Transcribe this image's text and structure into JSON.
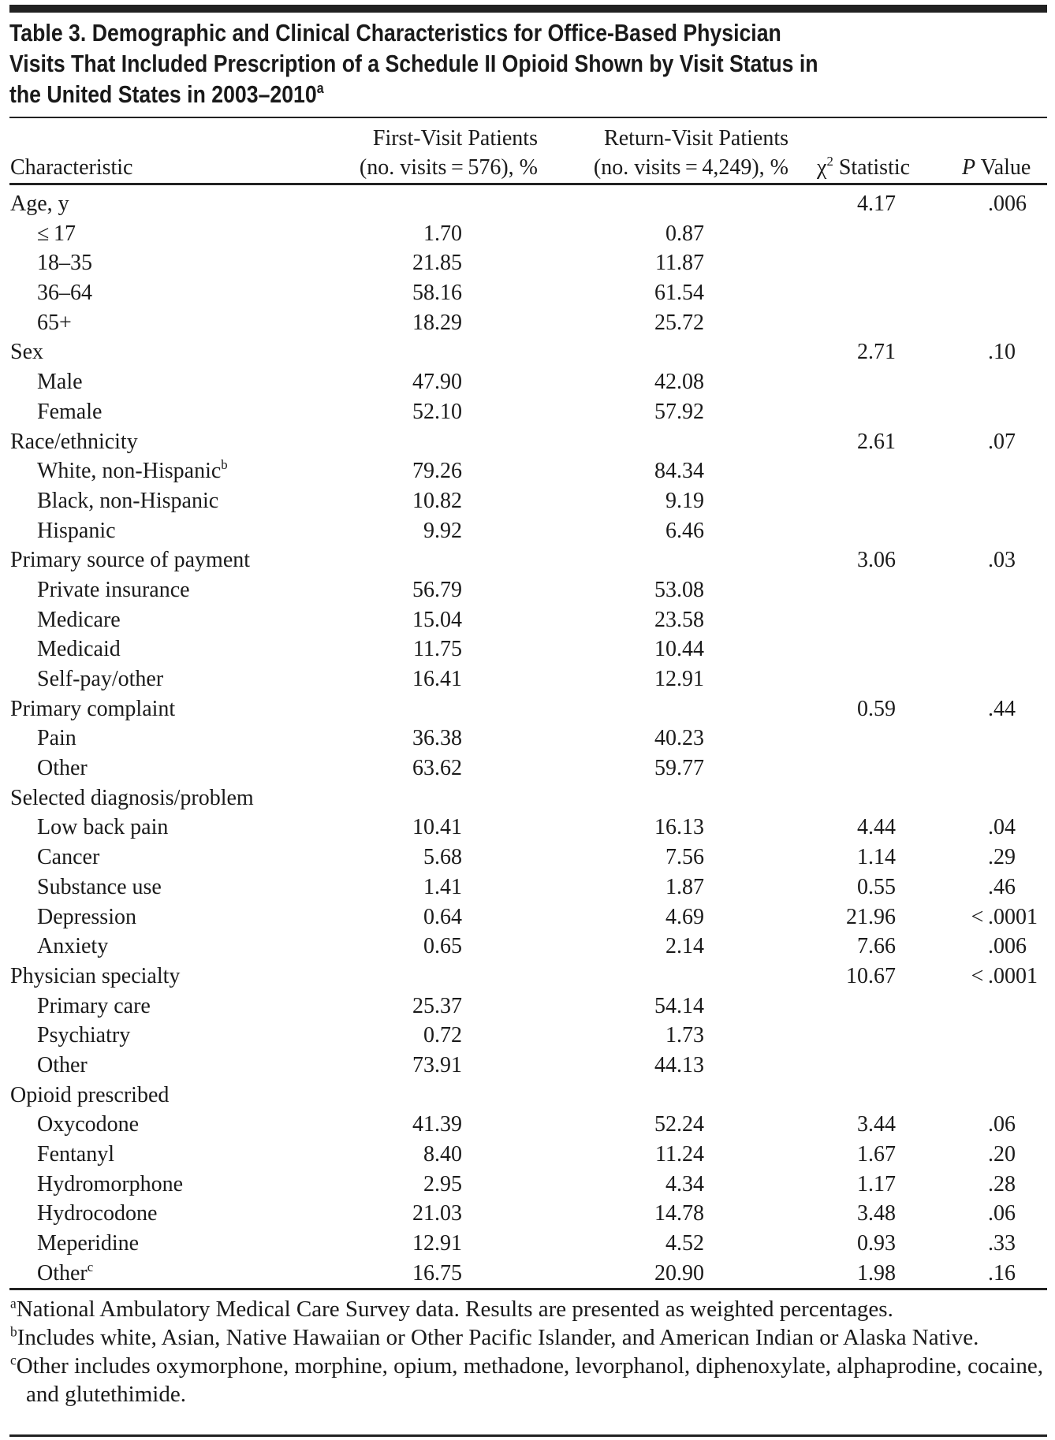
{
  "title": {
    "lines": [
      "Table 3. Demographic and Clinical Characteristics for Office-Based Physician",
      "Visits That Included Prescription of a Schedule II Opioid Shown by Visit Status in",
      "the United States in 2003–2010"
    ],
    "footnote_mark": "a"
  },
  "header": {
    "characteristic": "Characteristic",
    "first_line1": "First-Visit Patients",
    "first_line2": "(no. visits = 576), %",
    "return_line1": "Return-Visit Patients",
    "return_line2": "(no. visits = 4,249), %",
    "chi_symbol": "χ",
    "chi_sup": "2",
    "chi_label": " Statistic",
    "p_italic": "P",
    "p_label": " Value"
  },
  "rows": [
    {
      "label": "Age, y",
      "group": true,
      "first": "",
      "return": "",
      "chi": "4.17",
      "p": ".006"
    },
    {
      "label": "≤ 17",
      "first": "1.70",
      "return": "0.87",
      "chi": "",
      "p": ""
    },
    {
      "label": "18–35",
      "first": "21.85",
      "return": "11.87",
      "chi": "",
      "p": ""
    },
    {
      "label": "36–64",
      "first": "58.16",
      "return": "61.54",
      "chi": "",
      "p": ""
    },
    {
      "label": "65+",
      "first": "18.29",
      "return": "25.72",
      "chi": "",
      "p": ""
    },
    {
      "label": "Sex",
      "group": true,
      "first": "",
      "return": "",
      "chi": "2.71",
      "p": ".10"
    },
    {
      "label": "Male",
      "first": "47.90",
      "return": "42.08",
      "chi": "",
      "p": ""
    },
    {
      "label": "Female",
      "first": "52.10",
      "return": "57.92",
      "chi": "",
      "p": ""
    },
    {
      "label": "Race/ethnicity",
      "group": true,
      "first": "",
      "return": "",
      "chi": "2.61",
      "p": ".07"
    },
    {
      "label": "White, non-Hispanic",
      "sup": "b",
      "first": "79.26",
      "return": "84.34",
      "chi": "",
      "p": ""
    },
    {
      "label": "Black, non-Hispanic",
      "first": "10.82",
      "return": "9.19",
      "chi": "",
      "p": ""
    },
    {
      "label": "Hispanic",
      "first": "9.92",
      "return": "6.46",
      "chi": "",
      "p": ""
    },
    {
      "label": "Primary source of payment",
      "group": true,
      "first": "",
      "return": "",
      "chi": "3.06",
      "p": ".03"
    },
    {
      "label": "Private insurance",
      "first": "56.79",
      "return": "53.08",
      "chi": "",
      "p": ""
    },
    {
      "label": "Medicare",
      "first": "15.04",
      "return": "23.58",
      "chi": "",
      "p": ""
    },
    {
      "label": "Medicaid",
      "first": "11.75",
      "return": "10.44",
      "chi": "",
      "p": ""
    },
    {
      "label": "Self-pay/other",
      "first": "16.41",
      "return": "12.91",
      "chi": "",
      "p": ""
    },
    {
      "label": "Primary complaint",
      "group": true,
      "first": "",
      "return": "",
      "chi": "0.59",
      "p": ".44"
    },
    {
      "label": "Pain",
      "first": "36.38",
      "return": "40.23",
      "chi": "",
      "p": ""
    },
    {
      "label": "Other",
      "first": "63.62",
      "return": "59.77",
      "chi": "",
      "p": ""
    },
    {
      "label": "Selected diagnosis/problem",
      "group": true,
      "first": "",
      "return": "",
      "chi": "",
      "p": ""
    },
    {
      "label": "Low back pain",
      "first": "10.41",
      "return": "16.13",
      "chi": "4.44",
      "p": ".04"
    },
    {
      "label": "Cancer",
      "first": "5.68",
      "return": "7.56",
      "chi": "1.14",
      "p": ".29"
    },
    {
      "label": "Substance use",
      "first": "1.41",
      "return": "1.87",
      "chi": "0.55",
      "p": ".46"
    },
    {
      "label": "Depression",
      "first": "0.64",
      "return": "4.69",
      "chi": "21.96",
      "p": "< .0001"
    },
    {
      "label": "Anxiety",
      "first": "0.65",
      "return": "2.14",
      "chi": "7.66",
      "p": ".006"
    },
    {
      "label": "Physician specialty",
      "group": true,
      "first": "",
      "return": "",
      "chi": "10.67",
      "p": "< .0001"
    },
    {
      "label": "Primary care",
      "first": "25.37",
      "return": "54.14",
      "chi": "",
      "p": ""
    },
    {
      "label": "Psychiatry",
      "first": "0.72",
      "return": "1.73",
      "chi": "",
      "p": ""
    },
    {
      "label": "Other",
      "first": "73.91",
      "return": "44.13",
      "chi": "",
      "p": ""
    },
    {
      "label": "Opioid prescribed",
      "group": true,
      "first": "",
      "return": "",
      "chi": "",
      "p": ""
    },
    {
      "label": "Oxycodone",
      "first": "41.39",
      "return": "52.24",
      "chi": "3.44",
      "p": ".06"
    },
    {
      "label": "Fentanyl",
      "first": "8.40",
      "return": "11.24",
      "chi": "1.67",
      "p": ".20"
    },
    {
      "label": "Hydromorphone",
      "first": "2.95",
      "return": "4.34",
      "chi": "1.17",
      "p": ".28"
    },
    {
      "label": "Hydrocodone",
      "first": "21.03",
      "return": "14.78",
      "chi": "3.48",
      "p": ".06"
    },
    {
      "label": "Meperidine",
      "first": "12.91",
      "return": "4.52",
      "chi": "0.93",
      "p": ".33"
    },
    {
      "label": "Other",
      "sup": "c",
      "first": "16.75",
      "return": "20.90",
      "chi": "1.98",
      "p": ".16"
    }
  ],
  "footnotes": [
    {
      "mark": "a",
      "text": "National Ambulatory Medical Care Survey data. Results are presented as weighted percentages."
    },
    {
      "mark": "b",
      "text": "Includes white, Asian, Native Hawaiian or Other Pacific Islander, and American Indian or Alaska Native."
    },
    {
      "mark": "c",
      "text": "Other includes oxymorphone, morphine, opium, methadone, levorphanol, diphenoxylate, alphaprodine, cocaine, and glutethimide."
    }
  ]
}
